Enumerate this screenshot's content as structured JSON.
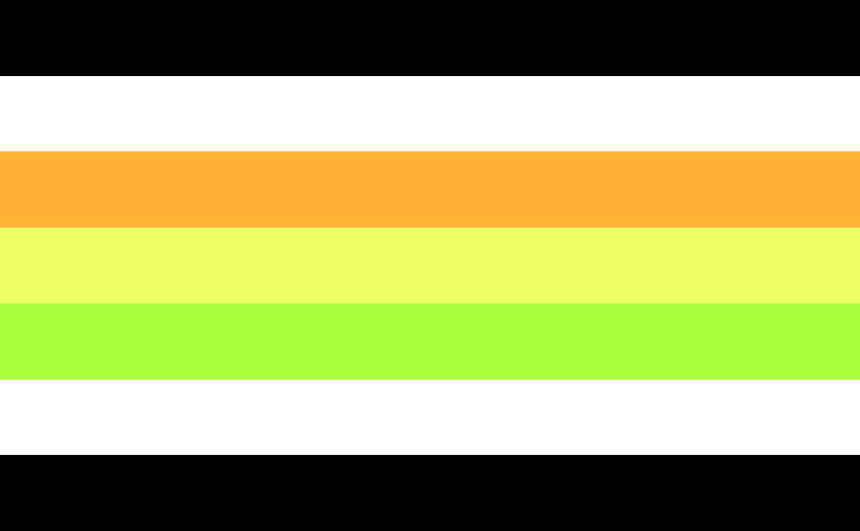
{
  "flag": {
    "stripes": [
      {
        "color": "#000000"
      },
      {
        "color": "#FFFFFF"
      },
      {
        "color": "#FFB233"
      },
      {
        "color": "#EEFF66"
      },
      {
        "color": "#AAFF3C"
      },
      {
        "color": "#FFFFFF"
      },
      {
        "color": "#000000"
      }
    ]
  }
}
